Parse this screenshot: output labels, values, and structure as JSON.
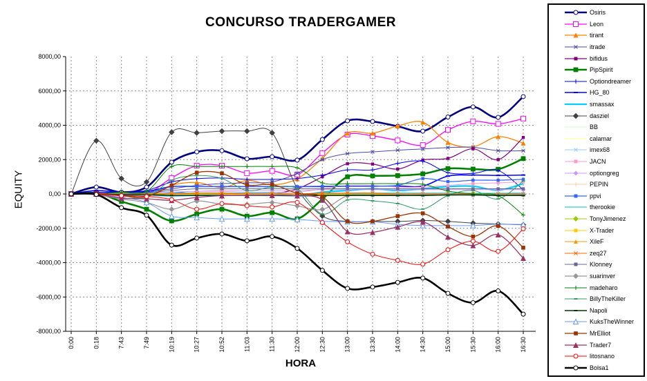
{
  "chart_data": {
    "type": "line",
    "title": "CONCURSO TRADERGAMER",
    "xlabel": "HORA",
    "ylabel": "EQUITY",
    "ylim": [
      -8000,
      8000
    ],
    "y_tick_step": 2000,
    "y_tick_labels": [
      "8000,00",
      "6000,00",
      "4000,00",
      "2000,00",
      "0,00",
      "-2000,00",
      "-4000,00",
      "-6000,00",
      "-8000,00"
    ],
    "grid": "both-dashed",
    "legend_position": "right",
    "categories": [
      "0:00",
      "0:18",
      "7:43",
      "7:49",
      "10:19",
      "10:27",
      "10:52",
      "11:03",
      "11:30",
      "12:00",
      "12:30",
      "13:00",
      "13:30",
      "14:00",
      "14:30",
      "15:00",
      "15:30",
      "16:00",
      "16:30"
    ],
    "series": [
      {
        "name": "Osiris",
        "color": "#000080",
        "width": 2.6,
        "marker": "circle-open",
        "msize": 3,
        "values": [
          0,
          400,
          100,
          400,
          1850,
          2450,
          2520,
          2050,
          2170,
          1970,
          3170,
          4260,
          4220,
          3940,
          3660,
          4480,
          5070,
          4460,
          5670
        ]
      },
      {
        "name": "Leon",
        "color": "#FF00FF",
        "width": 1.3,
        "marker": "square-open",
        "msize": 3.5,
        "values": [
          0,
          0,
          -50,
          0,
          930,
          1650,
          1650,
          1210,
          1340,
          1120,
          2380,
          3460,
          3380,
          3120,
          2850,
          3730,
          4230,
          4080,
          4390
        ]
      },
      {
        "name": "tirant",
        "color": "#FF8000",
        "width": 1.3,
        "marker": "triangle",
        "msize": 3.5,
        "values": [
          0,
          0,
          -100,
          -150,
          500,
          670,
          370,
          790,
          530,
          880,
          2080,
          3540,
          3540,
          3960,
          4180,
          3000,
          2750,
          3340,
          2960
        ]
      },
      {
        "name": "itrade",
        "color": "#4A4AA8",
        "width": 1,
        "marker": "star",
        "msize": 2.5,
        "values": [
          0,
          100,
          50,
          100,
          300,
          500,
          600,
          650,
          700,
          1200,
          2000,
          2350,
          2450,
          2550,
          2620,
          2700,
          2720,
          2520,
          2520
        ]
      },
      {
        "name": "bifidus",
        "color": "#800080",
        "width": 1.2,
        "marker": "square",
        "msize": 2.2,
        "values": [
          0,
          0,
          -50,
          -100,
          100,
          0,
          -80,
          -80,
          0,
          300,
          1000,
          1760,
          1740,
          1450,
          1980,
          2070,
          2630,
          2000,
          3290
        ]
      },
      {
        "name": "PipSpirit",
        "color": "#008000",
        "width": 2.6,
        "marker": "square",
        "msize": 3.4,
        "values": [
          0,
          50,
          -440,
          -890,
          -1570,
          -1170,
          -890,
          -1290,
          -1090,
          -1450,
          -300,
          1000,
          1050,
          1070,
          1170,
          1480,
          1450,
          1440,
          2060
        ]
      },
      {
        "name": "Optiondreamer",
        "color": "#0000FF",
        "width": 1,
        "marker": "plus",
        "msize": 3,
        "values": [
          0,
          100,
          100,
          200,
          700,
          890,
          930,
          850,
          850,
          900,
          1100,
          1400,
          1400,
          1780,
          1900,
          1240,
          1200,
          1370,
          240
        ]
      },
      {
        "name": "HG_80",
        "color": "#0000FF",
        "width": 1.6,
        "marker": "dash",
        "msize": 3,
        "values": [
          0,
          200,
          100,
          150,
          430,
          430,
          430,
          430,
          430,
          430,
          430,
          450,
          450,
          460,
          460,
          1040,
          1100,
          1080,
          1100
        ]
      },
      {
        "name": "smassax",
        "color": "#00CCFF",
        "width": 2.2,
        "marker": "none",
        "msize": 0,
        "values": [
          0,
          0,
          -50,
          -50,
          -100,
          -50,
          0,
          0,
          -50,
          -100,
          100,
          200,
          300,
          200,
          300,
          430,
          450,
          220,
          600
        ]
      },
      {
        "name": "dasziel",
        "color": "#404040",
        "width": 1,
        "marker": "diamond",
        "msize": 3,
        "values": [
          0,
          3100,
          900,
          700,
          3600,
          3560,
          3660,
          3660,
          3560,
          320,
          -1280,
          -1600,
          -1600,
          -1600,
          -1550,
          -1600,
          -1700,
          -1750,
          -1800
        ]
      },
      {
        "name": "BB",
        "color": "#CCFFCC",
        "width": 1,
        "marker": "none",
        "msize": 0,
        "values": [
          0,
          0,
          0,
          0,
          -30,
          -30,
          -30,
          -30,
          -30,
          -30,
          -30,
          -20,
          -20,
          -20,
          -20,
          -20,
          -20,
          -20,
          -20
        ]
      },
      {
        "name": "calamar",
        "color": "#FFFF99",
        "width": 1,
        "marker": "none",
        "msize": 0,
        "values": [
          0,
          0,
          0,
          0,
          -20,
          -20,
          -20,
          -20,
          -20,
          -20,
          -20,
          -30,
          -30,
          -30,
          -30,
          -30,
          -30,
          -30,
          -30
        ]
      },
      {
        "name": "imex68",
        "color": "#99CCFF",
        "width": 1,
        "marker": "star",
        "msize": 2.5,
        "values": [
          0,
          0,
          -100,
          -100,
          -150,
          -100,
          -100,
          -100,
          -100,
          -150,
          -100,
          -80,
          -80,
          -80,
          -80,
          -80,
          -80,
          -60,
          -60
        ]
      },
      {
        "name": "JACN",
        "color": "#FF99CC",
        "width": 1,
        "marker": "square",
        "msize": 2.2,
        "values": [
          0,
          0,
          0,
          50,
          100,
          150,
          150,
          100,
          100,
          100,
          300,
          500,
          500,
          400,
          400,
          500,
          600,
          650,
          700
        ]
      },
      {
        "name": "optiongreg",
        "color": "#CC99FF",
        "width": 1,
        "marker": "diamond",
        "msize": 2.5,
        "values": [
          0,
          0,
          0,
          0,
          100,
          150,
          200,
          200,
          200,
          200,
          250,
          250,
          250,
          250,
          250,
          250,
          250,
          250,
          250
        ]
      },
      {
        "name": "PEPIN",
        "color": "#FFCC99",
        "width": 1,
        "marker": "plus",
        "msize": 3,
        "values": [
          0,
          0,
          0,
          0,
          -20,
          -20,
          -20,
          -20,
          -20,
          -20,
          -20,
          -20,
          -20,
          -20,
          -20,
          -30,
          -30,
          -30,
          -30
        ]
      },
      {
        "name": "ppvi",
        "color": "#3366FF",
        "width": 1.3,
        "marker": "square",
        "msize": 2.2,
        "values": [
          0,
          50,
          0,
          50,
          430,
          430,
          430,
          430,
          430,
          430,
          450,
          450,
          450,
          500,
          900,
          720,
          800,
          800,
          850
        ]
      },
      {
        "name": "therookie",
        "color": "#33CCCC",
        "width": 1.3,
        "marker": "none",
        "msize": 0,
        "values": [
          0,
          0,
          0,
          0,
          50,
          50,
          50,
          50,
          50,
          0,
          0,
          50,
          50,
          50,
          50,
          50,
          40,
          40,
          50
        ]
      },
      {
        "name": "TonyJimenez",
        "color": "#99CC00",
        "width": 1,
        "marker": "diamond",
        "msize": 2.8,
        "values": [
          0,
          0,
          50,
          50,
          0,
          0,
          0,
          0,
          0,
          0,
          -50,
          0,
          0,
          0,
          -30,
          -50,
          0,
          -50,
          -30
        ]
      },
      {
        "name": "X-Trader",
        "color": "#FFCC00",
        "width": 1,
        "marker": "square",
        "msize": 2.5,
        "values": [
          0,
          0,
          0,
          0,
          -20,
          -20,
          -20,
          -20,
          -20,
          -20,
          -40,
          -40,
          -40,
          -40,
          -40,
          -40,
          -40,
          -40,
          -40
        ]
      },
      {
        "name": "XileF",
        "color": "#FF9900",
        "width": 1,
        "marker": "triangle",
        "msize": 3,
        "values": [
          0,
          0,
          0,
          0,
          -10,
          -10,
          -10,
          -10,
          -10,
          -10,
          -10,
          -20,
          -20,
          -20,
          -20,
          -20,
          -20,
          -20,
          -20
        ]
      },
      {
        "name": "zeq27",
        "color": "#FF6600",
        "width": 1,
        "marker": "star",
        "msize": 2.5,
        "values": [
          0,
          0,
          -50,
          -50,
          0,
          50,
          50,
          0,
          0,
          0,
          50,
          50,
          50,
          0,
          0,
          0,
          0,
          0,
          0
        ]
      },
      {
        "name": "Klonney",
        "color": "#666699",
        "width": 1,
        "marker": "square",
        "msize": 2.2,
        "values": [
          0,
          0,
          0,
          50,
          200,
          300,
          300,
          300,
          300,
          300,
          300,
          300,
          300,
          300,
          300,
          300,
          300,
          300,
          300
        ]
      },
      {
        "name": "suarinver",
        "color": "#969696",
        "width": 1.2,
        "marker": "diamond",
        "msize": 2.8,
        "values": [
          0,
          -50,
          -300,
          -500,
          -890,
          -420,
          -600,
          -610,
          -500,
          -700,
          -900,
          -100,
          -60,
          -50,
          -50,
          -50,
          -50,
          -50,
          -40
        ]
      },
      {
        "name": "madeharo",
        "color": "#008000",
        "width": 1,
        "marker": "plus",
        "msize": 3,
        "values": [
          0,
          0,
          100,
          150,
          1600,
          1600,
          1600,
          1600,
          1600,
          1520,
          640,
          600,
          600,
          600,
          570,
          170,
          0,
          -100,
          -1230
        ]
      },
      {
        "name": "BillyTheKiller",
        "color": "#339966",
        "width": 1,
        "marker": "dash",
        "msize": 2.5,
        "values": [
          0,
          0,
          -100,
          -200,
          800,
          1070,
          900,
          200,
          400,
          300,
          -1170,
          -350,
          -400,
          -560,
          -880,
          -90,
          200,
          -290,
          760
        ]
      },
      {
        "name": "Napoli",
        "color": "#003300",
        "width": 1.4,
        "marker": "dash",
        "msize": 2.5,
        "values": [
          0,
          0,
          -50,
          -50,
          -90,
          -90,
          -90,
          -90,
          -90,
          -90,
          -90,
          -90,
          -90,
          -90,
          -90,
          -60,
          -60,
          -90,
          -90
        ]
      },
      {
        "name": "KuksTheWinner",
        "color": "#6699FF",
        "width": 1,
        "marker": "triangle-open",
        "msize": 3.5,
        "values": [
          0,
          0,
          -200,
          -490,
          -1290,
          -1370,
          -1450,
          -1450,
          -1450,
          -1480,
          -1590,
          -1620,
          -1620,
          -1770,
          -1840,
          -1840,
          -1840,
          -1760,
          -1780
        ]
      },
      {
        "name": "MrElliot",
        "color": "#993300",
        "width": 1.3,
        "marker": "square",
        "msize": 2.8,
        "values": [
          0,
          50,
          -100,
          -150,
          500,
          1240,
          1200,
          530,
          550,
          40,
          -170,
          -1600,
          -1600,
          -1290,
          -1130,
          -1900,
          -2480,
          -1860,
          -3130
        ]
      },
      {
        "name": "Trader7",
        "color": "#993366",
        "width": 1.3,
        "marker": "triangle",
        "msize": 4,
        "values": [
          0,
          0,
          -250,
          -280,
          -370,
          -200,
          -100,
          -90,
          -80,
          -100,
          -350,
          -2190,
          -2230,
          -1920,
          -1630,
          -2500,
          -3000,
          -2370,
          -3740
        ]
      },
      {
        "name": "litosnano",
        "color": "#FF0000",
        "width": 1,
        "marker": "circle-open",
        "msize": 3,
        "values": [
          0,
          0,
          -100,
          -150,
          -330,
          -890,
          -560,
          -690,
          -760,
          -490,
          -1670,
          -2790,
          -3510,
          -3870,
          -4090,
          -3250,
          -2750,
          -3340,
          -2030
        ]
      },
      {
        "name": "Bolsa1",
        "color": "#000000",
        "width": 2.6,
        "marker": "circle-open",
        "msize": 3,
        "values": [
          0,
          -30,
          -800,
          -1240,
          -2980,
          -2570,
          -2330,
          -2730,
          -2480,
          -3170,
          -4450,
          -5500,
          -5420,
          -5150,
          -4900,
          -5790,
          -6330,
          -5650,
          -7000
        ]
      }
    ]
  }
}
